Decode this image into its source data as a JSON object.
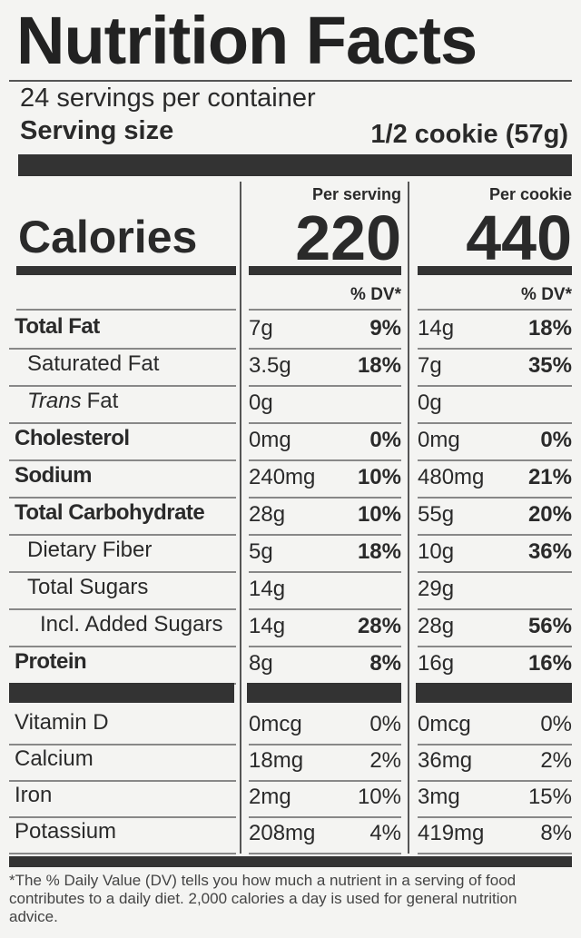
{
  "title": "Nutrition Facts",
  "servings": "24 servings per container",
  "serving_size": {
    "label": "Serving size",
    "value": "1/2 cookie (57g)"
  },
  "columns": [
    "Per serving",
    "Per cookie"
  ],
  "calories": {
    "label": "Calories",
    "values": [
      "220",
      "440"
    ]
  },
  "dv_headers": [
    "% DV*",
    "% DV*"
  ],
  "nutrients": [
    {
      "name": "Total Fat",
      "bold": true,
      "indent": 0,
      "cells": [
        [
          "7g",
          "9%"
        ],
        [
          "14g",
          "18%"
        ]
      ]
    },
    {
      "name": "Saturated Fat",
      "bold": false,
      "indent": 1,
      "cells": [
        [
          "3.5g",
          "18%"
        ],
        [
          "7g",
          "35%"
        ]
      ]
    },
    {
      "italic": "Trans",
      "name": "Fat",
      "bold": false,
      "indent": 1,
      "cells": [
        [
          "0g",
          null
        ],
        [
          "0g",
          null
        ]
      ]
    },
    {
      "name": "Cholesterol",
      "bold": true,
      "indent": 0,
      "cells": [
        [
          "0mg",
          "0%"
        ],
        [
          "0mg",
          "0%"
        ]
      ]
    },
    {
      "name": "Sodium",
      "bold": true,
      "indent": 0,
      "cells": [
        [
          "240mg",
          "10%"
        ],
        [
          "480mg",
          "21%"
        ]
      ]
    },
    {
      "name": "Total Carbohydrate",
      "bold": true,
      "indent": 0,
      "cells": [
        [
          "28g",
          "10%"
        ],
        [
          "55g",
          "20%"
        ]
      ]
    },
    {
      "name": "Dietary Fiber",
      "bold": false,
      "indent": 1,
      "cells": [
        [
          "5g",
          "18%"
        ],
        [
          "10g",
          "36%"
        ]
      ]
    },
    {
      "name": "Total Sugars",
      "bold": false,
      "indent": 1,
      "cells": [
        [
          "14g",
          null
        ],
        [
          "29g",
          null
        ]
      ]
    },
    {
      "name": "Incl. Added Sugars",
      "bold": false,
      "indent": 2,
      "cells": [
        [
          "14g",
          "28%"
        ],
        [
          "28g",
          "56%"
        ]
      ]
    },
    {
      "name": "Protein",
      "bold": true,
      "indent": 0,
      "cells": [
        [
          "8g",
          "8%"
        ],
        [
          "16g",
          "16%"
        ]
      ]
    }
  ],
  "vitamins": [
    {
      "name": "Vitamin D",
      "cells": [
        [
          "0mcg",
          "0%"
        ],
        [
          "0mcg",
          "0%"
        ]
      ]
    },
    {
      "name": "Calcium",
      "cells": [
        [
          "18mg",
          "2%"
        ],
        [
          "36mg",
          "2%"
        ]
      ]
    },
    {
      "name": "Iron",
      "cells": [
        [
          "2mg",
          "10%"
        ],
        [
          "3mg",
          "15%"
        ]
      ]
    },
    {
      "name": "Potassium",
      "cells": [
        [
          "208mg",
          "4%"
        ],
        [
          "419mg",
          "8%"
        ]
      ]
    }
  ],
  "footnote": "*The % Daily Value (DV) tells you how much a nutrient in a serving of food contributes to a daily diet. 2,000 calories a day is used for general nutrition advice."
}
